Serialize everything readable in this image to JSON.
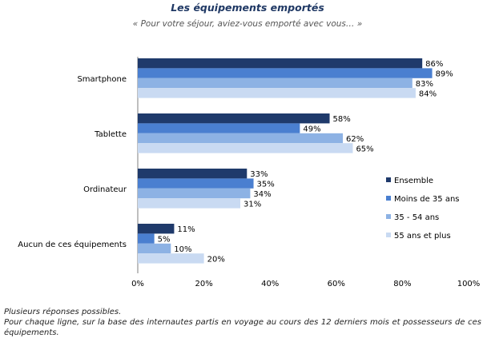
{
  "title": "Les équipements emportés",
  "subtitle": "« Pour votre séjour, aviez-vous emporté avec vous… »",
  "notes": {
    "line1": "Plusieurs réponses possibles.",
    "line2": "Pour chaque ligne, sur la base des internautes partis en voyage au cours des 12 derniers mois et possesseurs de ces équipements."
  },
  "chart_data": {
    "type": "bar",
    "orientation": "horizontal",
    "categories": [
      "Smartphone",
      "Tablette",
      "Ordinateur",
      "Aucun de ces équipements"
    ],
    "series": [
      {
        "name": "Ensemble",
        "color": "#1f3a6b",
        "values": [
          86,
          58,
          33,
          11
        ]
      },
      {
        "name": "Moins de 35 ans",
        "color": "#4a7fd0",
        "values": [
          89,
          49,
          35,
          5
        ]
      },
      {
        "name": "35 - 54 ans",
        "color": "#8db2e4",
        "values": [
          83,
          62,
          34,
          10
        ]
      },
      {
        "name": "55 ans et plus",
        "color": "#c9daf2",
        "values": [
          84,
          65,
          31,
          20
        ]
      }
    ],
    "xlim": [
      0,
      100
    ],
    "xticks": [
      "0%",
      "20%",
      "40%",
      "60%",
      "80%",
      "100%"
    ],
    "value_suffix": "%",
    "legend_position": "right",
    "grid": false
  }
}
